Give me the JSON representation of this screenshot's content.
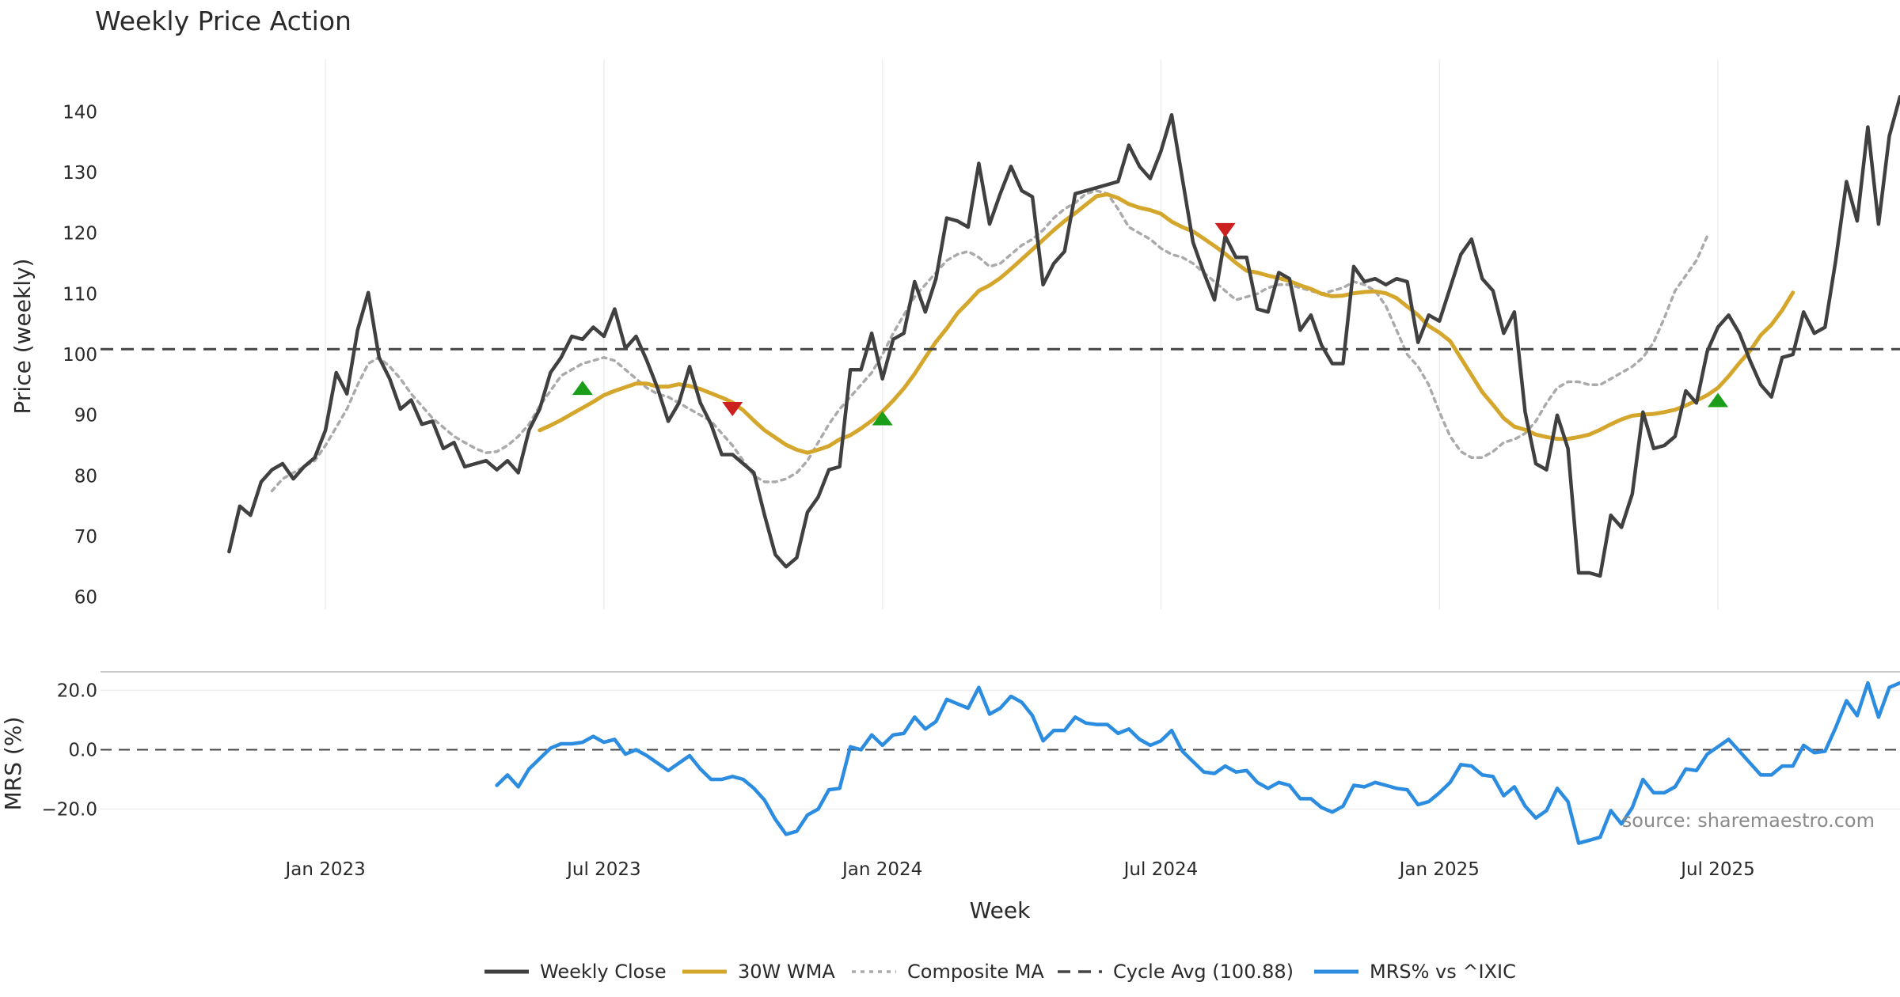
{
  "chart_data": [
    {
      "type": "line",
      "panel": "price",
      "title": "Weekly Price Action",
      "ylabel": "Price (weekly)",
      "xlabel": "Week",
      "x_range": [
        -12,
        156
      ],
      "ylim": [
        58,
        148
      ],
      "yticks": [
        60,
        70,
        80,
        90,
        100,
        110,
        120,
        130,
        140
      ],
      "xticks": [
        {
          "week": 9,
          "label": "Jan 2023"
        },
        {
          "week": 35,
          "label": "Jul 2023"
        },
        {
          "week": 61,
          "label": "Jan 2024"
        },
        {
          "week": 87,
          "label": "Jul 2024"
        },
        {
          "week": 113,
          "label": "Jan 2025"
        },
        {
          "week": 139,
          "label": "Jul 2025"
        }
      ],
      "series": [
        {
          "name": "Weekly Close",
          "color": "#404040",
          "x0": 0,
          "values": [
            67.5,
            75,
            73.5,
            79,
            81,
            82,
            79.5,
            81.5,
            83,
            87.5,
            97,
            93.5,
            104,
            110.2,
            99.5,
            96,
            91,
            92.5,
            88.5,
            89,
            84.5,
            85.5,
            81.5,
            82,
            82.5,
            81,
            82.5,
            80.5,
            87.5,
            91,
            97,
            99.5,
            103,
            102.5,
            104.5,
            103,
            107.5,
            101,
            103,
            99,
            94.5,
            89,
            92,
            98,
            92,
            88.5,
            83.5,
            83.5,
            82,
            80.5,
            73.5,
            67,
            65,
            66.5,
            74,
            76.5,
            81,
            81.5,
            97.5,
            97.5,
            103.5,
            96,
            102.5,
            103.5,
            112,
            107,
            112.5,
            122.5,
            122,
            121,
            131.5,
            121.5,
            126.5,
            131,
            127,
            126,
            111.5,
            115,
            117,
            126.5,
            127,
            127.5,
            128,
            128.5,
            134.5,
            131,
            129,
            133.5,
            139.5,
            129,
            118.5,
            113.5,
            109,
            119.5,
            116,
            116,
            107.5,
            107,
            113.5,
            112.5,
            104,
            106.5,
            101.5,
            98.5,
            98.5,
            114.5,
            112,
            112.5,
            111.5,
            112.5,
            112,
            102,
            106.5,
            105.5,
            111,
            116.5,
            119,
            112.5,
            110.5,
            103.5,
            107,
            90.5,
            82,
            81,
            90,
            84.5,
            64,
            64,
            63.5,
            73.5,
            71.5,
            77,
            90.5,
            84.5,
            85,
            86.5,
            94,
            92,
            100.5,
            104.5,
            106.5,
            103.5,
            99,
            95,
            93,
            99.5,
            100,
            107,
            103.5,
            104.5,
            115.5,
            128.5,
            122,
            137.5,
            121.5,
            136,
            142.5
          ]
        },
        {
          "name": "30W WMA",
          "color": "#d4a72c",
          "x0": 29,
          "values": [
            87.5,
            88.3,
            89.2,
            90.2,
            91.2,
            92.2,
            93.3,
            94,
            94.6,
            95.2,
            95.2,
            94.7,
            94.7,
            95.1,
            94.8,
            94.3,
            93.6,
            92.9,
            92.1,
            90.8,
            89.1,
            87.5,
            86.3,
            85.1,
            84.3,
            83.8,
            84.3,
            84.9,
            86,
            86.7,
            87.8,
            89.1,
            90.6,
            92.4,
            94.4,
            96.8,
            99.5,
            102.1,
            104.3,
            106.8,
            108.6,
            110.5,
            111.4,
            112.6,
            114.1,
            115.7,
            117.3,
            118.9,
            120.5,
            122,
            123.3,
            124.7,
            126.1,
            126.4,
            125.8,
            124.8,
            124.2,
            123.8,
            123.2,
            121.9,
            121,
            120.3,
            119.1,
            117.9,
            116.6,
            115.1,
            113.8,
            113.5,
            113,
            112.6,
            112.1,
            111.4,
            110.8,
            110,
            109.6,
            109.7,
            110.1,
            110.3,
            110.4,
            110.1,
            109.3,
            107.9,
            106.5,
            104.7,
            103.6,
            102.2,
            99.4,
            96.6,
            93.8,
            91.7,
            89.5,
            88.1,
            87.6,
            86.8,
            86.4,
            86.1,
            86.1,
            86.4,
            86.8,
            87.6,
            88.5,
            89.3,
            89.9,
            90.1,
            90.2,
            90.5,
            90.9,
            91.6,
            92.4,
            93.3,
            94.5,
            96.4,
            98.6,
            100.6,
            103.2,
            104.9,
            107.3,
            110.2
          ]
        },
        {
          "name": "Composite MA",
          "color": "#aaaaaa",
          "x0": 4,
          "values": [
            77.5,
            79.5,
            80.5,
            81.5,
            82.5,
            85,
            88,
            91,
            95,
            98.5,
            99.5,
            98,
            96,
            93.5,
            91.5,
            89.5,
            88,
            86.5,
            85.5,
            84.5,
            83.8,
            84,
            85,
            86.5,
            88.5,
            91.5,
            94,
            96.5,
            97.5,
            98.5,
            99,
            99.5,
            99,
            97.5,
            96,
            94.5,
            93.5,
            93,
            92,
            91,
            90,
            89,
            87,
            85,
            82.5,
            80,
            79,
            79,
            79.5,
            80.5,
            82.5,
            85.5,
            88.5,
            91,
            93,
            95,
            97,
            100,
            103.5,
            106.5,
            109.5,
            111.5,
            113.5,
            115.5,
            116.5,
            117,
            116,
            114.5,
            115,
            116.5,
            118,
            119,
            120.5,
            122.5,
            124,
            125,
            126.5,
            127,
            126.5,
            124,
            121,
            120,
            119,
            117.5,
            116.5,
            116,
            115,
            113.5,
            112,
            110.5,
            109,
            109.5,
            110,
            111,
            111.5,
            111.5,
            111,
            110.5,
            110,
            110.5,
            111,
            112,
            111.5,
            110.5,
            108,
            104,
            100,
            98,
            95,
            90.5,
            86.5,
            84,
            83,
            83,
            84,
            85.5,
            86,
            87,
            89,
            92,
            94.5,
            95.5,
            95.5,
            95,
            95,
            96,
            97,
            98,
            99.5,
            102,
            106,
            110.5,
            113,
            115.5,
            119.5
          ]
        },
        {
          "name": "Cycle Avg (100.88)",
          "color": "#444444",
          "value": 100.88
        }
      ],
      "markers": [
        {
          "type": "buy",
          "week": 33,
          "value": 94.5,
          "color": "#1a9e1a"
        },
        {
          "type": "sell",
          "week": 47,
          "value": 91,
          "color": "#cc1f1f"
        },
        {
          "type": "buy",
          "week": 61,
          "value": 89.5,
          "color": "#1a9e1a"
        },
        {
          "type": "sell",
          "week": 93,
          "value": 120.5,
          "color": "#cc1f1f"
        },
        {
          "type": "buy",
          "week": 139,
          "value": 92.5,
          "color": "#1a9e1a"
        }
      ]
    },
    {
      "type": "line",
      "panel": "mrs",
      "ylabel": "MRS (%)",
      "ylim": [
        -34,
        26
      ],
      "yticks": [
        20,
        0,
        -20
      ],
      "ytick_labels": [
        "20.0",
        "0.0",
        "−20.0"
      ],
      "series": [
        {
          "name": "MRS% vs ^IXIC",
          "color": "#2b8ce0",
          "x0": 25,
          "values": [
            -12,
            -8.5,
            -12.5,
            -6.5,
            -3,
            0.5,
            2,
            2,
            2.5,
            4.5,
            2.5,
            3.5,
            -1.5,
            0,
            -2,
            -4.5,
            -7,
            -4.5,
            -2,
            -6.5,
            -10,
            -10,
            -9,
            -10,
            -13,
            -17,
            -23.5,
            -28.5,
            -27.5,
            -22,
            -20,
            -13.5,
            -13,
            1,
            0,
            5,
            1.5,
            5,
            5.5,
            11,
            7,
            9.5,
            17,
            15.5,
            14,
            21,
            12,
            14,
            18,
            16,
            11.5,
            3,
            6.5,
            6.5,
            11,
            9,
            8.5,
            8.5,
            5.5,
            7,
            3.5,
            1.5,
            3,
            6.5,
            -0.5,
            -4,
            -7.5,
            -8,
            -5.5,
            -7.5,
            -7,
            -11,
            -13,
            -11,
            -12,
            -16.5,
            -16.5,
            -19.5,
            -21,
            -19,
            -12,
            -12.5,
            -11,
            -12,
            -13,
            -13.5,
            -18.5,
            -17.5,
            -14.5,
            -11,
            -5,
            -5.5,
            -8.5,
            -9,
            -15.5,
            -12.5,
            -19,
            -23,
            -20.5,
            -13,
            -17.5,
            -31.5,
            -30.5,
            -29.5,
            -20.5,
            -25,
            -19.5,
            -10,
            -14.5,
            -14.5,
            -12.5,
            -6.5,
            -7,
            -1.5,
            1,
            3.5,
            -0.5,
            -4.5,
            -8.5,
            -8.5,
            -5.5,
            -5.5,
            1.5,
            -1,
            -0.5,
            7.5,
            16.5,
            11.5,
            22.5,
            11,
            21,
            22.5
          ]
        },
        {
          "name": "zero",
          "color": "#444444",
          "value": 0
        }
      ]
    }
  ],
  "source_text": "source: sharemaestro.com",
  "legend": [
    {
      "label": "Weekly Close",
      "color": "#404040",
      "style": "solid"
    },
    {
      "label": "30W WMA",
      "color": "#d4a72c",
      "style": "solid"
    },
    {
      "label": "Composite MA",
      "color": "#aaaaaa",
      "style": "dotted"
    },
    {
      "label": "Cycle Avg (100.88)",
      "color": "#444444",
      "style": "dashed"
    },
    {
      "label": "MRS% vs ^IXIC",
      "color": "#2b8ce0",
      "style": "solid"
    }
  ]
}
